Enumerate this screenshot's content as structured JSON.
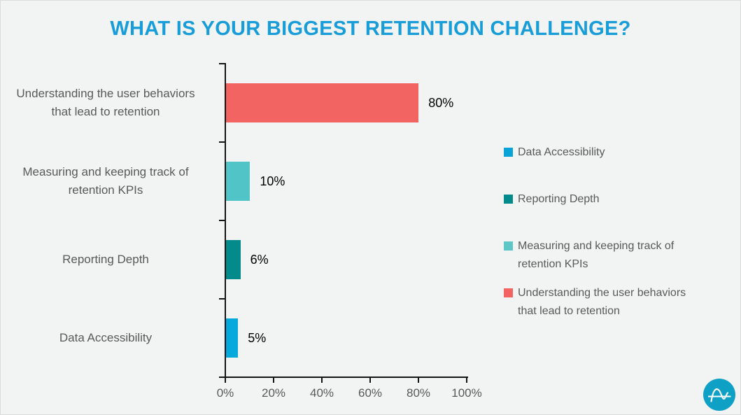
{
  "page": {
    "background": "#f2f3f3",
    "border_color": "#dadbdb"
  },
  "title": {
    "text": "WHAT IS YOUR BIGGEST RETENTION CHALLENGE?",
    "color": "#189dd9"
  },
  "chart_data": {
    "type": "bar",
    "orientation": "horizontal",
    "title": "WHAT IS YOUR BIGGEST RETENTION CHALLENGE?",
    "categories": [
      "Understanding the user behaviors that lead to retention",
      "Measuring and keeping track of retention KPIs",
      "Reporting Depth",
      "Data Accessibility"
    ],
    "values": [
      80,
      10,
      6,
      5
    ],
    "value_labels": [
      "80%",
      "10%",
      "6%",
      "5%"
    ],
    "bar_colors": [
      "#f26462",
      "#50c4c6",
      "#028b8a",
      "#06a9db"
    ],
    "xlim": [
      0,
      100
    ],
    "x_ticks": [
      "0%",
      "20%",
      "40%",
      "60%",
      "80%",
      "100%"
    ],
    "grid": false,
    "axis_color": "#141414",
    "label_color": "#595959",
    "legend_position": "right",
    "legend": [
      {
        "label": "Data Accessibility",
        "color": "#09a3d8"
      },
      {
        "label": "Reporting Depth",
        "color": "#028b8a"
      },
      {
        "label": "Measuring and keeping track of retention KPIs",
        "color": "#5fc6c7"
      },
      {
        "label": "Understanding the user behaviors that lead to retention",
        "color": "#f26462"
      }
    ]
  },
  "logo": {
    "name": "amplitude-logo",
    "circle_color": "#0fa0c6",
    "glyph_color": "#ffffff"
  }
}
